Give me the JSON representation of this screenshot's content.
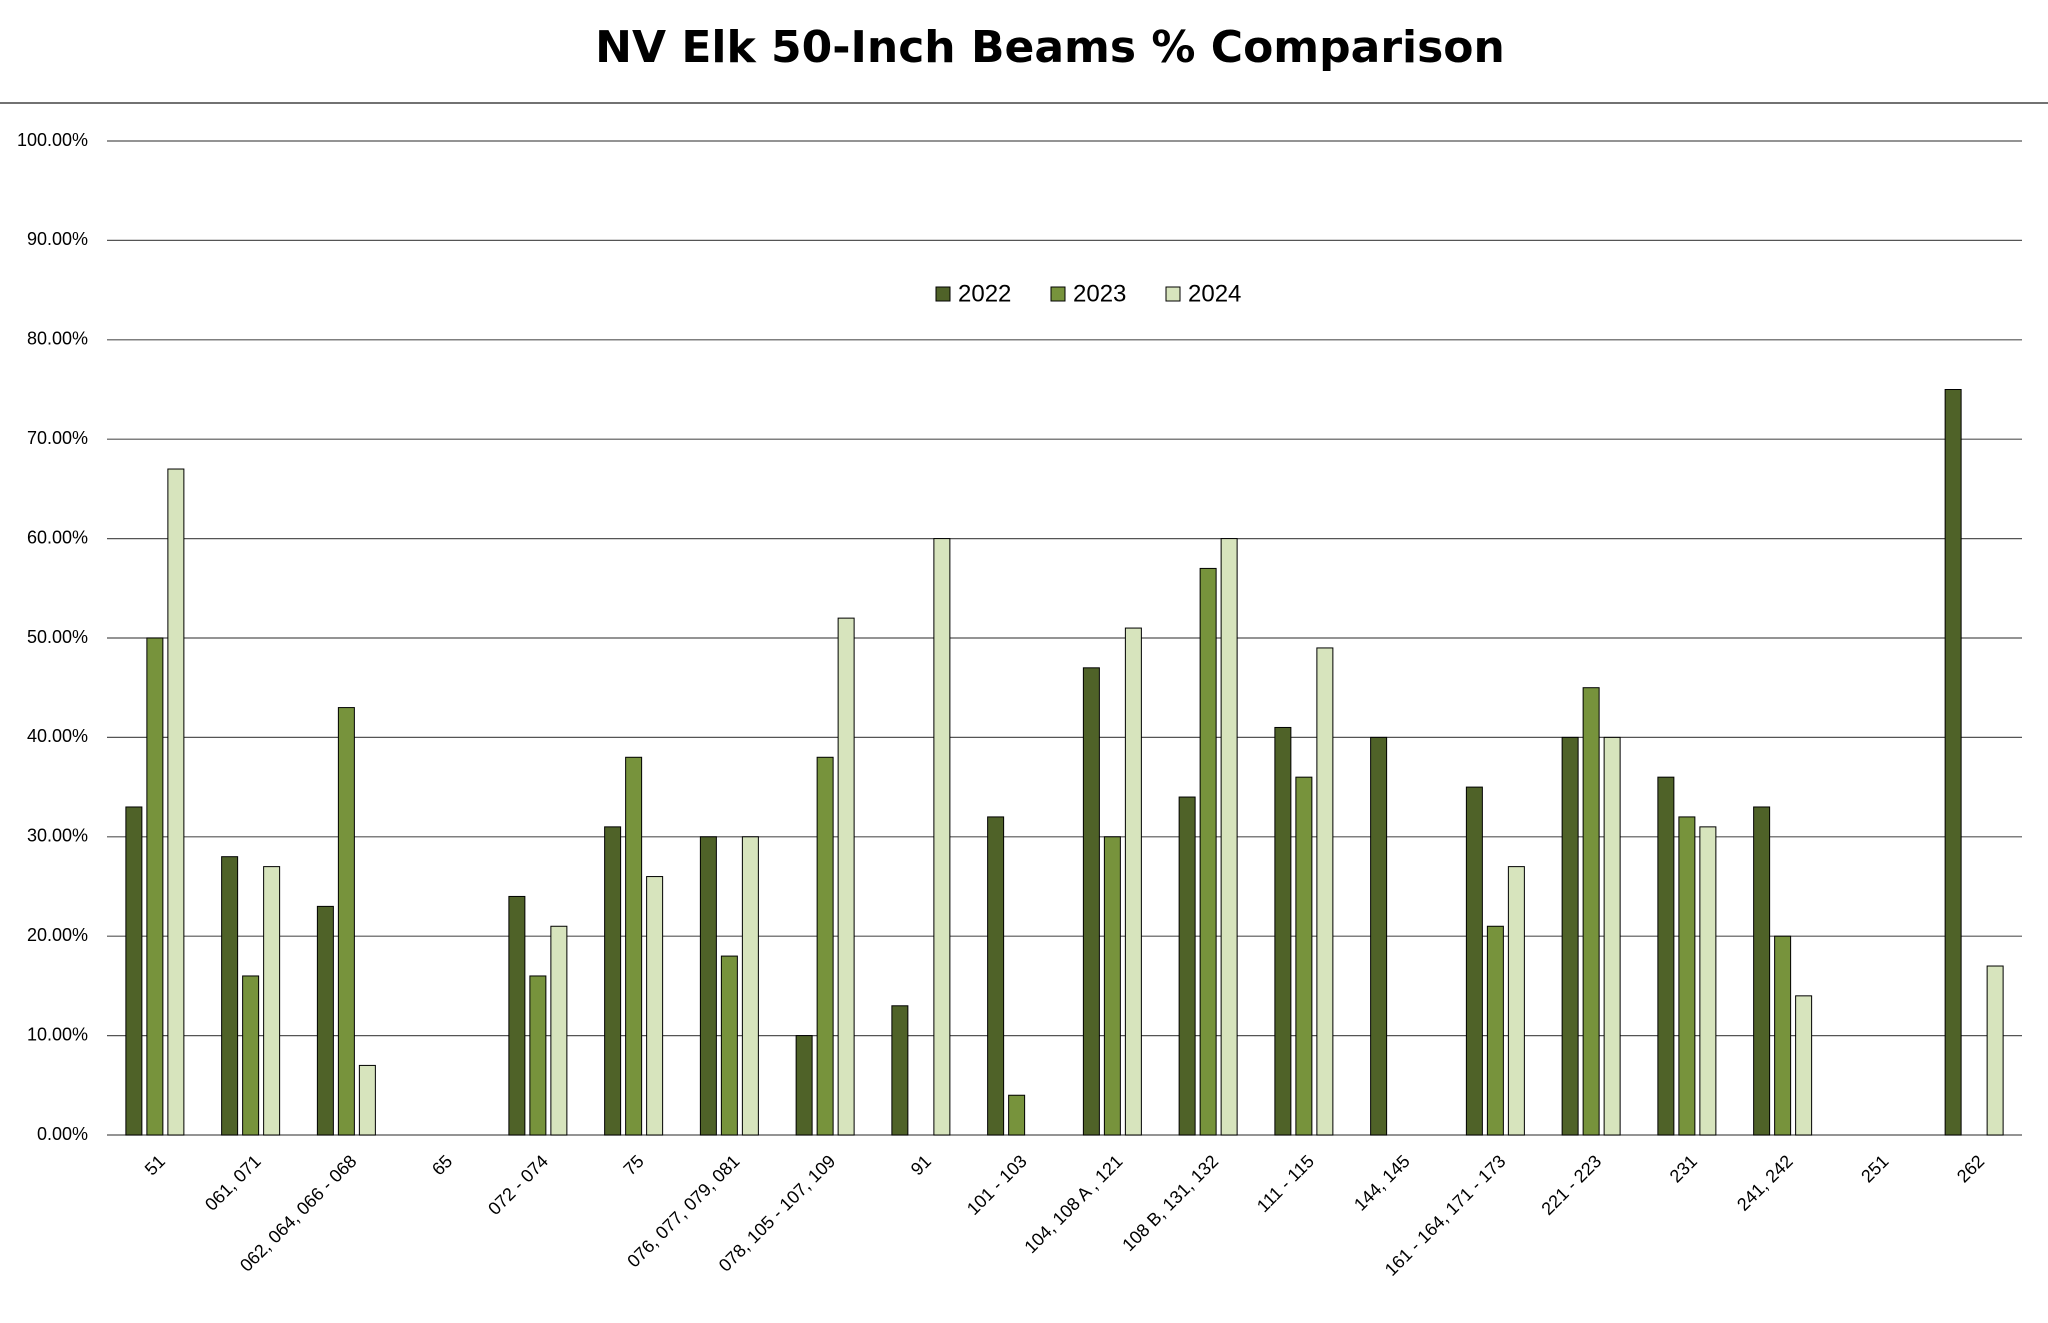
{
  "chart_data": {
    "type": "bar",
    "title": "NV Elk 50-Inch Beams % Comparison",
    "categories": [
      "51",
      "061, 071",
      "062, 064, 066 - 068",
      "65",
      "072 - 074",
      "75",
      "076, 077, 079, 081",
      "078, 105 - 107, 109",
      "91",
      "101 - 103",
      "104, 108 A , 121",
      "108 B, 131, 132",
      "111 - 115",
      "144, 145",
      "161 - 164, 171 - 173",
      "221 - 223",
      "231",
      "241, 242",
      "251",
      "262"
    ],
    "series": [
      {
        "name": "2022",
        "color": "#4f6228",
        "values": [
          33,
          28,
          23,
          null,
          24,
          31,
          30,
          10,
          13,
          32,
          47,
          34,
          41,
          40,
          35,
          40,
          36,
          33,
          null,
          75
        ]
      },
      {
        "name": "2023",
        "color": "#77933c",
        "values": [
          50,
          16,
          43,
          null,
          16,
          38,
          18,
          38,
          null,
          4,
          30,
          57,
          36,
          null,
          21,
          45,
          32,
          20,
          null,
          null
        ]
      },
      {
        "name": "2024",
        "color": "#d7e4bd",
        "values": [
          67,
          27,
          7,
          null,
          21,
          26,
          30,
          52,
          60,
          null,
          51,
          60,
          49,
          null,
          27,
          40,
          31,
          14,
          null,
          17
        ]
      }
    ],
    "ylim": [
      0,
      100
    ],
    "yticks": [
      {
        "value": 0,
        "label": "0.00%"
      },
      {
        "value": 10,
        "label": "10.00%"
      },
      {
        "value": 20,
        "label": "20.00%"
      },
      {
        "value": 30,
        "label": "30.00%"
      },
      {
        "value": 40,
        "label": "40.00%"
      },
      {
        "value": 50,
        "label": "50.00%"
      },
      {
        "value": 60,
        "label": "60.00%"
      },
      {
        "value": 70,
        "label": "70.00%"
      },
      {
        "value": 80,
        "label": "80.00%"
      },
      {
        "value": 90,
        "label": "90.00%"
      },
      {
        "value": 100,
        "label": "100.00%"
      }
    ],
    "grid": true,
    "legend": "top"
  }
}
